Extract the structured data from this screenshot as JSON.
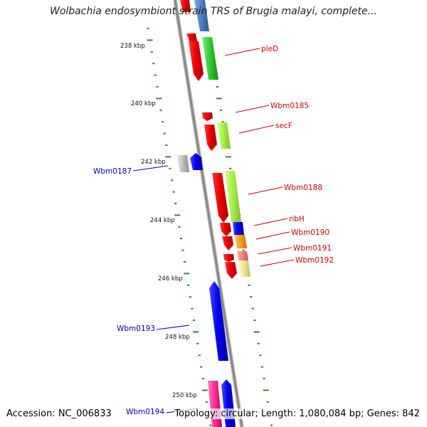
{
  "title": "Wolbachia endosymbiont strain TRS of Brugia malayi, complete...",
  "footer": {
    "accession": "Accession: NC_006833",
    "summary": "Topology: circular; Length: 1,080,084 bp; Genes: 842"
  },
  "scale": {
    "ticks": [
      "238 kbp",
      "240 kbp",
      "242 kbp",
      "244 kbp",
      "246 kbp",
      "248 kbp",
      "250 kbp"
    ]
  },
  "colors": {
    "forward_label": "#cc0000",
    "reverse_label": "#0000bb",
    "backbone": "#8a8a8a",
    "tick_green": "#2e8b2e"
  },
  "genes": {
    "forward": [
      "pleD",
      "Wbm0185",
      "secF",
      "Wbm0188",
      "ribH",
      "Wbm0190",
      "Wbm0191",
      "Wbm0192"
    ],
    "reverse": [
      "Wbm0187",
      "Wbm0193",
      "Wbm0194"
    ]
  }
}
